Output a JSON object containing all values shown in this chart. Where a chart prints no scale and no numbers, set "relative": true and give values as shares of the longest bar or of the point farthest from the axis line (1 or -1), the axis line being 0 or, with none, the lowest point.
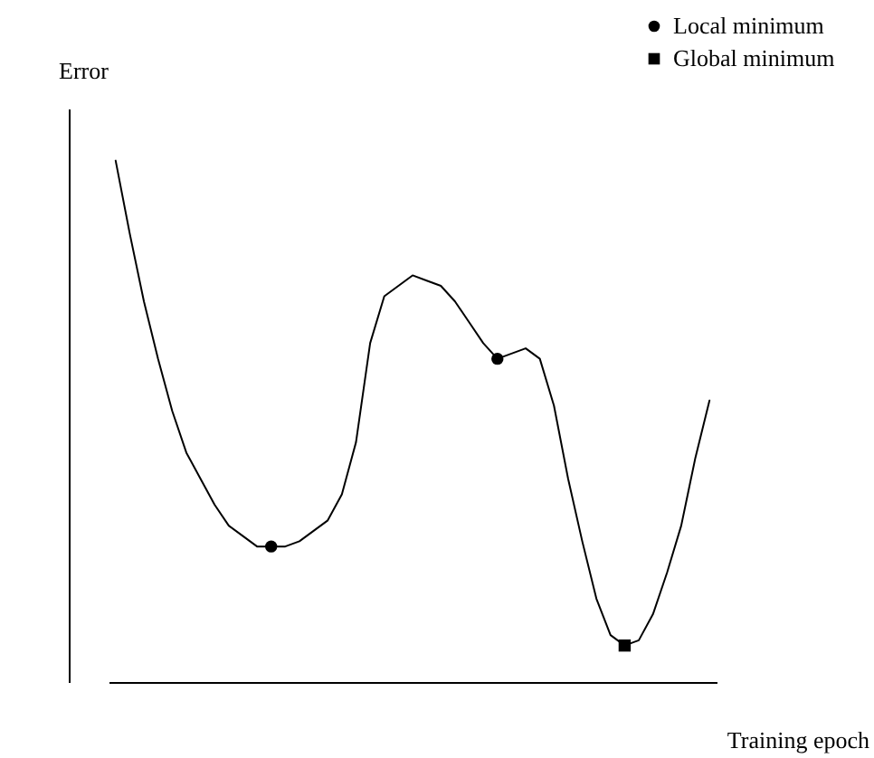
{
  "chart_data": {
    "type": "line",
    "relative": true,
    "xlabel": "Training epoch",
    "ylabel": "Error",
    "tick_labels": false,
    "grid": false,
    "legend": "top right",
    "categories": [
      null,
      null,
      null,
      null,
      null,
      null,
      null,
      null,
      null,
      null,
      null,
      null,
      null,
      null,
      null,
      null,
      null,
      null,
      null,
      null,
      null,
      null,
      null,
      null,
      null,
      null,
      null,
      null,
      null,
      null,
      null,
      null,
      null,
      null,
      null,
      null,
      null,
      null,
      null,
      null,
      null,
      null,
      null
    ],
    "series": [
      {
        "type": "line",
        "color": "#000000",
        "marker": "none",
        "values": [
          1.0,
          0.86,
          0.73,
          0.62,
          0.52,
          0.44,
          0.39,
          0.34,
          0.3,
          0.28,
          0.26,
          0.26,
          0.26,
          0.27,
          0.29,
          0.31,
          0.36,
          0.46,
          0.65,
          0.74,
          0.76,
          0.78,
          0.77,
          0.76,
          0.73,
          0.69,
          0.65,
          0.62,
          0.63,
          0.64,
          0.62,
          0.53,
          0.39,
          0.27,
          0.16,
          0.09,
          0.07,
          0.08,
          0.13,
          0.21,
          0.3,
          0.43,
          0.54
        ]
      },
      {
        "type": "line",
        "name": "Local minimum",
        "color": "#000000",
        "marker": "circle",
        "values": [
          null,
          null,
          null,
          null,
          null,
          null,
          null,
          null,
          null,
          null,
          null,
          0.26,
          null,
          null,
          null,
          null,
          null,
          null,
          null,
          null,
          null,
          null,
          null,
          null,
          null,
          null,
          null,
          0.62,
          null,
          null,
          null,
          null,
          null,
          null,
          null,
          null,
          null,
          null,
          null,
          null,
          null,
          null,
          null
        ]
      },
      {
        "type": "line",
        "name": "Global minimum",
        "color": "#000000",
        "marker": "square",
        "values": [
          null,
          null,
          null,
          null,
          null,
          null,
          null,
          null,
          null,
          null,
          null,
          null,
          null,
          null,
          null,
          null,
          null,
          null,
          null,
          null,
          null,
          null,
          null,
          null,
          null,
          null,
          null,
          null,
          null,
          null,
          null,
          null,
          null,
          null,
          null,
          null,
          0.07,
          null,
          null,
          null,
          null,
          null,
          null
        ]
      }
    ]
  }
}
